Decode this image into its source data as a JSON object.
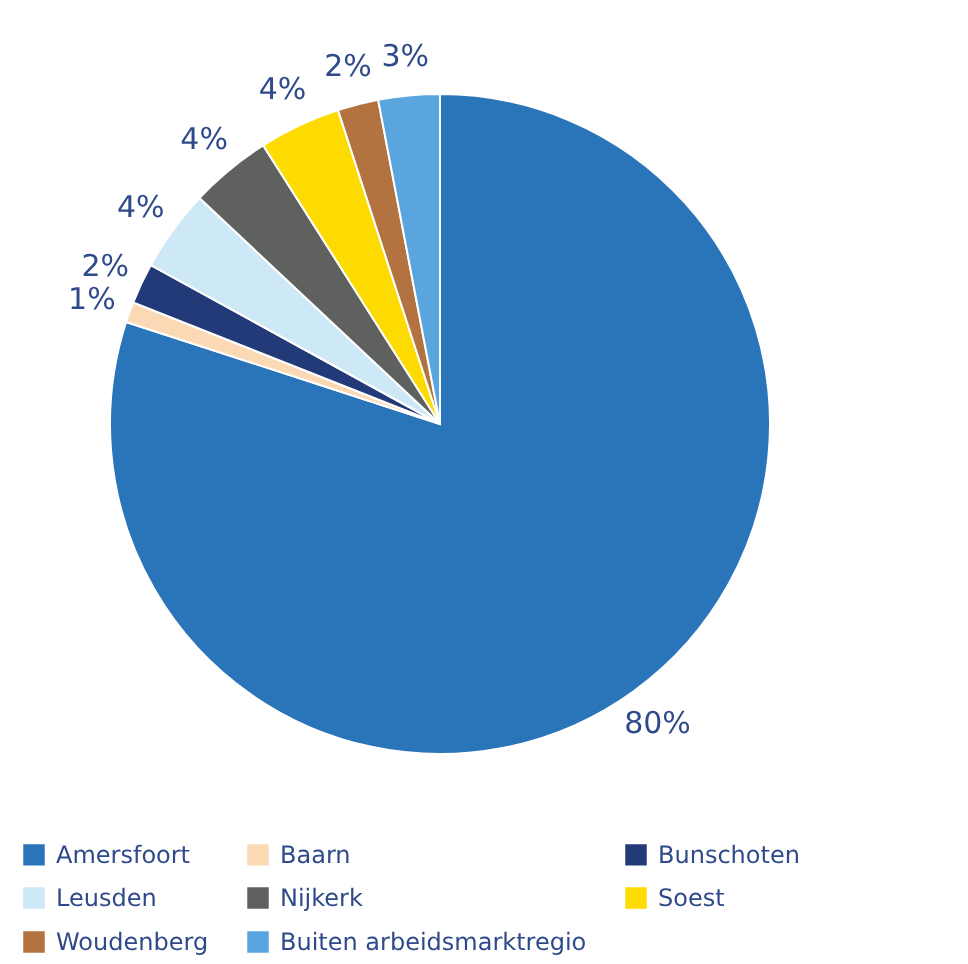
{
  "chart_data": {
    "type": "pie",
    "categories": [
      "Amersfoort",
      "Baarn",
      "Bunschoten",
      "Leusden",
      "Nijkerk",
      "Soest",
      "Woudenberg",
      "Buiten arbeidsmarktregio"
    ],
    "values": [
      80,
      1,
      2,
      4,
      4,
      4,
      2,
      3
    ],
    "value_labels": [
      "80%",
      "1%",
      "2%",
      "4%",
      "4%",
      "4%",
      "2%",
      "3%"
    ],
    "colors": [
      "#2a74b9",
      "#fbd9b4",
      "#223a78",
      "#cde8f6",
      "#5f615f",
      "#fedb00",
      "#b27340",
      "#5aa5de"
    ],
    "legend": "bottom"
  }
}
